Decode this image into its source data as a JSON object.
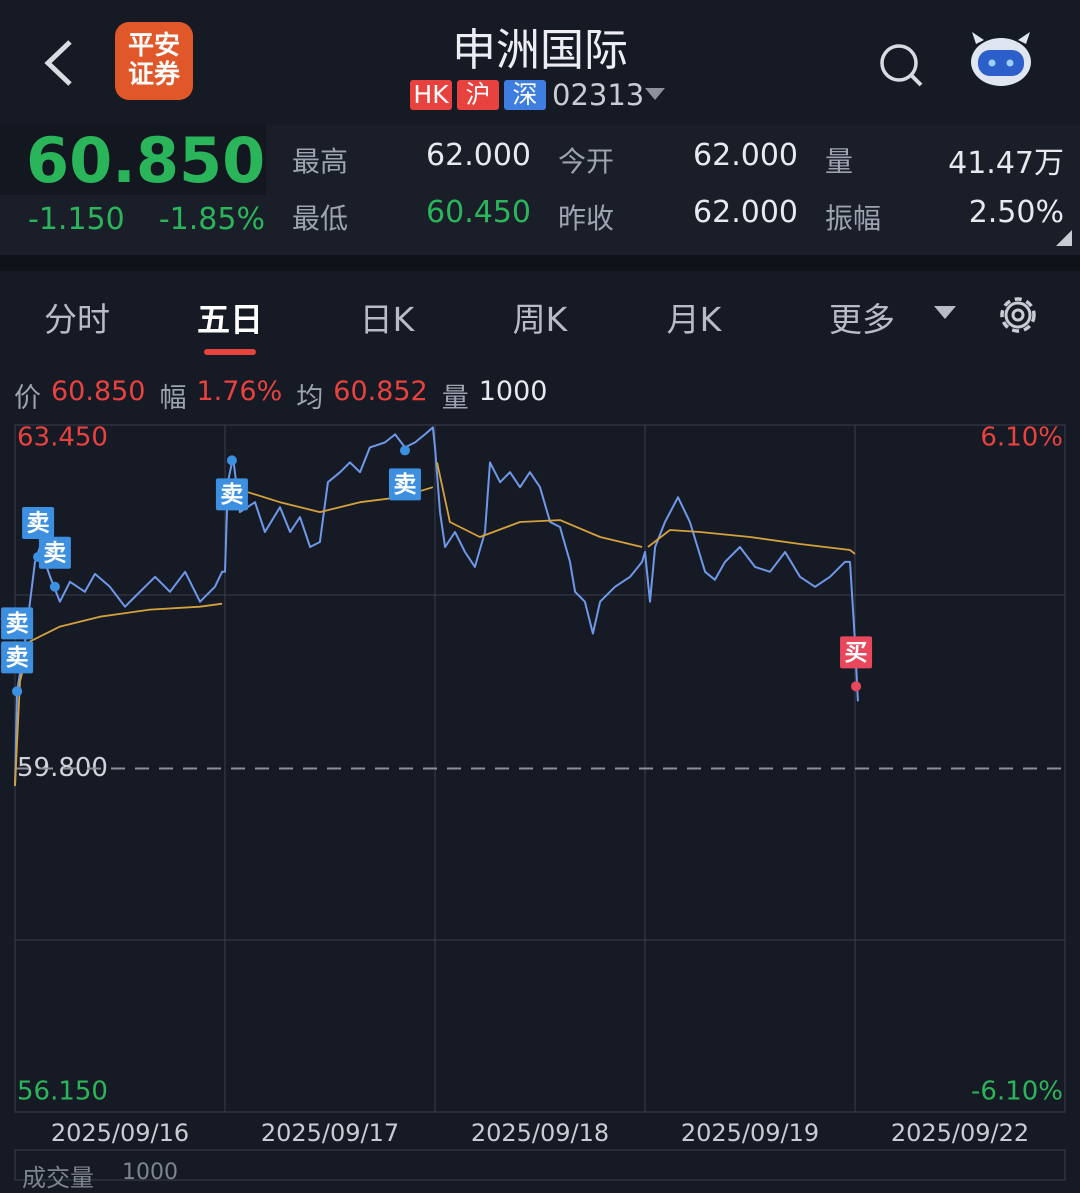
{
  "header": {
    "title": "申洲国际",
    "tags": [
      "HK",
      "沪",
      "深"
    ],
    "code": "02313",
    "logo": [
      "平安",
      "证券"
    ]
  },
  "quote": {
    "price": "60.850",
    "change": "-1.150",
    "change_pct": "-1.85%",
    "stats": [
      {
        "label": "最高",
        "value": "62.000"
      },
      {
        "label": "今开",
        "value": "62.000"
      },
      {
        "label": "量",
        "value": "41.47万"
      },
      {
        "label": "最低",
        "value": "60.450"
      },
      {
        "label": "昨收",
        "value": "62.000"
      },
      {
        "label": "振幅",
        "value": "2.50%"
      }
    ]
  },
  "tabs": [
    "分时",
    "五日",
    "日K",
    "周K",
    "月K",
    "更多"
  ],
  "active_tab": 1,
  "info_bar": [
    {
      "label": "价",
      "value": "60.850"
    },
    {
      "label": "幅",
      "value": "1.76%"
    },
    {
      "label": "均",
      "value": "60.852"
    },
    {
      "label": "量",
      "value": "1000"
    }
  ],
  "chart_data": {
    "type": "line",
    "xlim": [
      0,
      5
    ],
    "xticks": [
      {
        "value": 0.5,
        "label": "2025/09/16"
      },
      {
        "value": 1.5,
        "label": "2025/09/17"
      },
      {
        "value": 2.5,
        "label": "2025/09/18"
      },
      {
        "value": 3.5,
        "label": "2025/09/19"
      },
      {
        "value": 4.5,
        "label": "2025/09/22"
      }
    ],
    "ylim": [
      56.15,
      63.45
    ],
    "yticks": [
      {
        "value": 56.15,
        "label": "56.150"
      },
      {
        "value": 59.8,
        "label": "59.800"
      },
      {
        "value": 63.45,
        "label": "63.450"
      }
    ],
    "y2lim": [
      -6.1,
      6.1
    ],
    "y2ticks": [
      {
        "value": -6.1,
        "label": "-6.10%"
      },
      {
        "value": 6.1,
        "label": "6.10%"
      }
    ],
    "series": [
      {
        "color": "#6f98e8",
        "x": [
          0,
          0.01,
          0.048,
          0.095,
          0.119,
          0.167,
          0.214,
          0.262,
          0.333,
          0.381,
          0.452,
          0.524,
          0.595,
          0.667,
          0.738,
          0.81,
          0.881,
          0.952,
          0.986,
          1,
          1.014,
          1.038,
          1.071,
          1.143,
          1.19,
          1.262,
          1.31,
          1.357,
          1.405,
          1.452,
          1.49,
          1.548,
          1.595,
          1.643,
          1.69,
          1.762,
          1.81,
          1.857,
          1.905,
          1.952,
          1.99,
          2,
          2.024,
          2.048,
          2.095,
          2.143,
          2.19,
          2.238,
          2.262,
          2.31,
          2.357,
          2.405,
          2.452,
          2.5,
          2.548,
          2.595,
          2.643,
          2.667,
          2.714,
          2.752,
          2.786,
          2.857,
          2.929,
          2.986,
          3,
          3.024,
          3.048,
          3.095,
          3.157,
          3.214,
          3.286,
          3.333,
          3.381,
          3.452,
          3.524,
          3.595,
          3.667,
          3.738,
          3.81,
          3.881,
          3.952,
          3.976,
          4,
          4.014
        ],
        "values": [
          59.615,
          60.62,
          61.149,
          61.995,
          62.154,
          61.837,
          61.572,
          61.784,
          61.678,
          61.868,
          61.731,
          61.519,
          61.678,
          61.837,
          61.678,
          61.89,
          61.572,
          61.731,
          61.89,
          61.89,
          62.842,
          63.106,
          62.524,
          62.63,
          62.313,
          62.577,
          62.313,
          62.471,
          62.154,
          62.207,
          62.842,
          62.948,
          63.053,
          62.948,
          63.212,
          63.265,
          63.35,
          63.212,
          63.265,
          63.35,
          63.424,
          63.212,
          62.524,
          62.154,
          62.313,
          62.101,
          61.942,
          62.313,
          63.053,
          62.842,
          62.948,
          62.789,
          62.948,
          62.789,
          62.419,
          62.366,
          61.995,
          61.678,
          61.572,
          61.234,
          61.572,
          61.731,
          61.837,
          61.995,
          62.101,
          61.572,
          62.154,
          62.419,
          62.683,
          62.419,
          61.89,
          61.805,
          61.995,
          62.154,
          61.942,
          61.89,
          62.101,
          61.837,
          61.731,
          61.837,
          61.995,
          61.995,
          61.149,
          60.514
        ]
      },
      {
        "color": "#d4a23c",
        "x": [
          0,
          0.024,
          0.071,
          0.214,
          0.405,
          0.643,
          0.881,
          0.986,
          null,
          1.109,
          1.262,
          1.452,
          1.643,
          1.833,
          1.99,
          null,
          2.01,
          2.071,
          2.214,
          2.405,
          2.595,
          2.786,
          2.986,
          null,
          3.014,
          3.119,
          3.262,
          3.5,
          3.738,
          3.976,
          4
        ],
        "values": [
          59.615,
          60.726,
          61.149,
          61.308,
          61.413,
          61.488,
          61.519,
          61.551,
          null,
          62.736,
          62.63,
          62.524,
          62.63,
          62.683,
          62.789,
          null,
          63.053,
          62.419,
          62.26,
          62.419,
          62.44,
          62.26,
          62.154,
          null,
          62.154,
          62.334,
          62.313,
          62.26,
          62.186,
          62.122,
          62.08
        ]
      }
    ],
    "signals": [
      {
        "label": "卖",
        "x": 0.11,
        "value": 62.048,
        "side": "above"
      },
      {
        "label": "卖",
        "x": 0.19,
        "value": 61.731,
        "side": "above"
      },
      {
        "label": "卖",
        "x": 0.01,
        "value": 60.62,
        "side": "above"
      },
      {
        "label": "卖",
        "x": 0.01,
        "value": 60.62,
        "side": "above"
      },
      {
        "label": "卖",
        "x": 1.033,
        "value": 63.074,
        "side": "below"
      },
      {
        "label": "卖",
        "x": 1.857,
        "value": 63.18,
        "side": "below"
      },
      {
        "label": "买",
        "x": 4.005,
        "value": 60.673,
        "side": "above"
      }
    ]
  },
  "volume_panel": {
    "label": "成交量",
    "value": "1000"
  }
}
